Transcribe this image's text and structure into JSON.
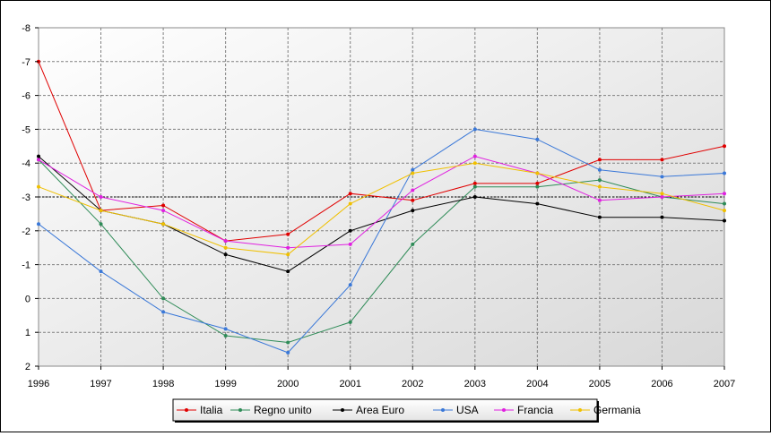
{
  "chart_data": {
    "type": "line",
    "title": "",
    "xlabel": "",
    "ylabel": "",
    "x": [
      "1996",
      "1997",
      "1998",
      "1999",
      "2000",
      "2001",
      "2002",
      "2003",
      "2004",
      "2005",
      "2006",
      "2007"
    ],
    "y_axis": {
      "inverted": true,
      "min": -8,
      "max": 2,
      "step": 1,
      "ticks": [
        "-8",
        "-7",
        "-6",
        "-5",
        "-4",
        "-3",
        "-2",
        "-1",
        "0",
        "1",
        "2"
      ]
    },
    "reference_line": -3,
    "grid": true,
    "legend_position": "bottom",
    "series": [
      {
        "name": "Italia",
        "color": "#e00000",
        "values": [
          -7.0,
          -2.6,
          -2.75,
          -1.7,
          -1.9,
          -3.1,
          -2.9,
          -3.4,
          -3.4,
          -4.1,
          -4.1,
          -4.5
        ]
      },
      {
        "name": "Regno unito",
        "color": "#2e8b57",
        "values": [
          -4.1,
          -2.2,
          0.0,
          1.1,
          1.3,
          0.7,
          -1.6,
          -3.3,
          -3.3,
          -3.5,
          -3.0,
          -2.8
        ]
      },
      {
        "name": "Area Euro",
        "color": "#000000",
        "values": [
          -4.2,
          -2.6,
          -2.2,
          -1.3,
          -0.8,
          -2.0,
          -2.6,
          -3.0,
          -2.8,
          -2.4,
          -2.4,
          -2.3
        ]
      },
      {
        "name": "USA",
        "color": "#3a78d8",
        "values": [
          -2.2,
          -0.8,
          0.4,
          0.9,
          1.6,
          -0.4,
          -3.8,
          -5.0,
          -4.7,
          -3.8,
          -3.6,
          -3.7
        ]
      },
      {
        "name": "Francia",
        "color": "#e020e0",
        "values": [
          -4.1,
          -3.0,
          -2.6,
          -1.7,
          -1.5,
          -1.6,
          -3.2,
          -4.2,
          -3.7,
          -2.9,
          -3.0,
          -3.1
        ]
      },
      {
        "name": "Germania",
        "color": "#f0c000",
        "values": [
          -3.3,
          -2.6,
          -2.2,
          -1.5,
          -1.3,
          -2.8,
          -3.7,
          -4.0,
          -3.7,
          -3.3,
          -3.1,
          -2.6
        ]
      }
    ]
  }
}
